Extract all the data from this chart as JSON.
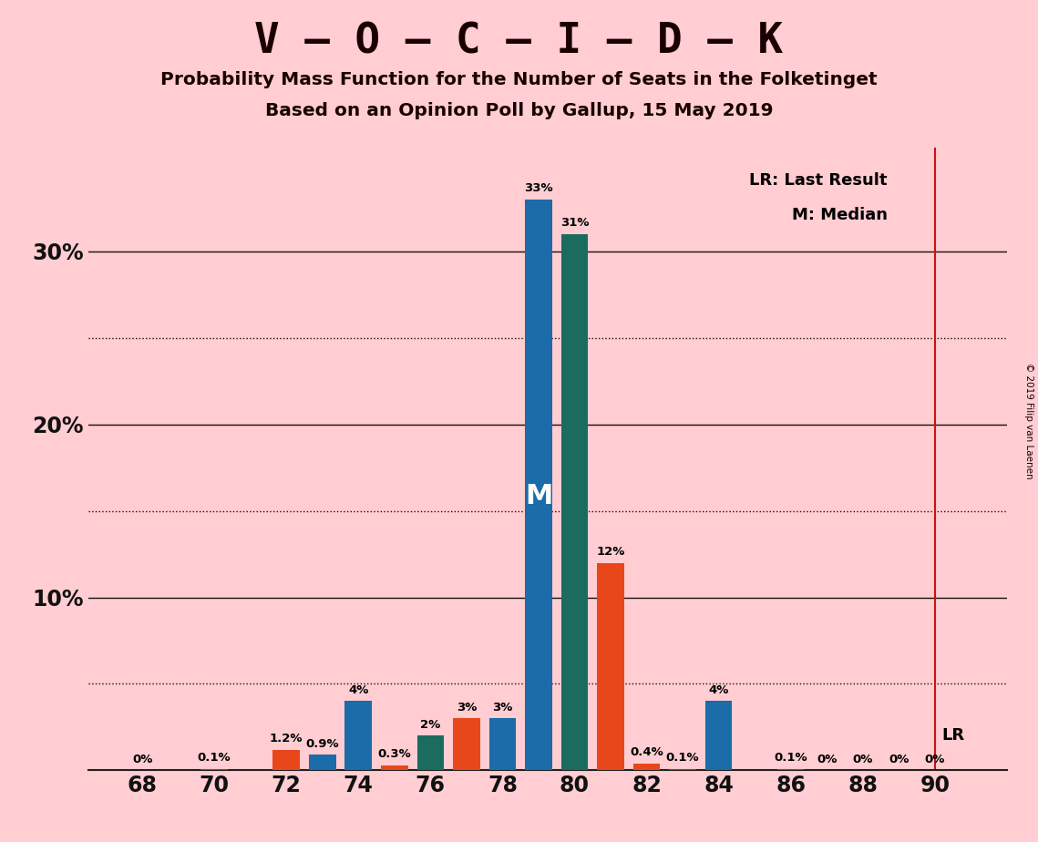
{
  "title_main": "V – O – C – I – D – K",
  "subtitle1": "Probability Mass Function for the Number of Seats in the Folketinget",
  "subtitle2": "Based on an Opinion Poll by Gallup, 15 May 2019",
  "copyright": "© 2019 Filip van Laenen",
  "background_color": "#FFCDD2",
  "bar_color_blue": "#1B6CA8",
  "bar_color_teal": "#1B6B5E",
  "bar_color_orange": "#E8471A",
  "lr_line_color": "#CC1111",
  "grid_dotted_color": "#111111",
  "grid_solid_color": "#111111",
  "seats": [
    68,
    69,
    70,
    71,
    72,
    73,
    74,
    75,
    76,
    77,
    78,
    79,
    80,
    81,
    82,
    83,
    84,
    85,
    86,
    87,
    88,
    89,
    90
  ],
  "values": [
    0.0,
    0.0,
    0.1,
    0.0,
    1.2,
    0.9,
    4.0,
    0.3,
    2.0,
    3.0,
    3.0,
    33.0,
    31.0,
    12.0,
    0.4,
    0.1,
    4.0,
    0.0,
    0.1,
    0.0,
    0.0,
    0.0,
    0.0
  ],
  "colors": [
    "B",
    "B",
    "B",
    "B",
    "O",
    "B",
    "B",
    "O",
    "T",
    "O",
    "B",
    "B",
    "T",
    "O",
    "O",
    "B",
    "B",
    "B",
    "B",
    "B",
    "B",
    "B",
    "B"
  ],
  "labels": [
    "0%",
    "",
    "0.1%",
    "",
    "1.2%",
    "0.9%",
    "4%",
    "0.3%",
    "2%",
    "3%",
    "3%",
    "33%",
    "31%",
    "12%",
    "0.4%",
    "0.1%",
    "4%",
    "",
    "0.1%",
    "0%",
    "0%",
    "0%",
    "0%"
  ],
  "lr_seat": 90,
  "median_seat": 79,
  "median_label": "M",
  "xlim_min": 66.5,
  "xlim_max": 92.0,
  "ylim_max": 36,
  "xticks": [
    68,
    70,
    72,
    74,
    76,
    78,
    80,
    82,
    84,
    86,
    88,
    90
  ],
  "ytick_majors": [
    10,
    20,
    30
  ],
  "ytick_major_labels": [
    "10%",
    "20%",
    "30%"
  ],
  "ytick_dotted": [
    5,
    15,
    25
  ],
  "legend_text1": "LR: Last Result",
  "legend_text2": "M: Median",
  "bar_width": 0.75
}
